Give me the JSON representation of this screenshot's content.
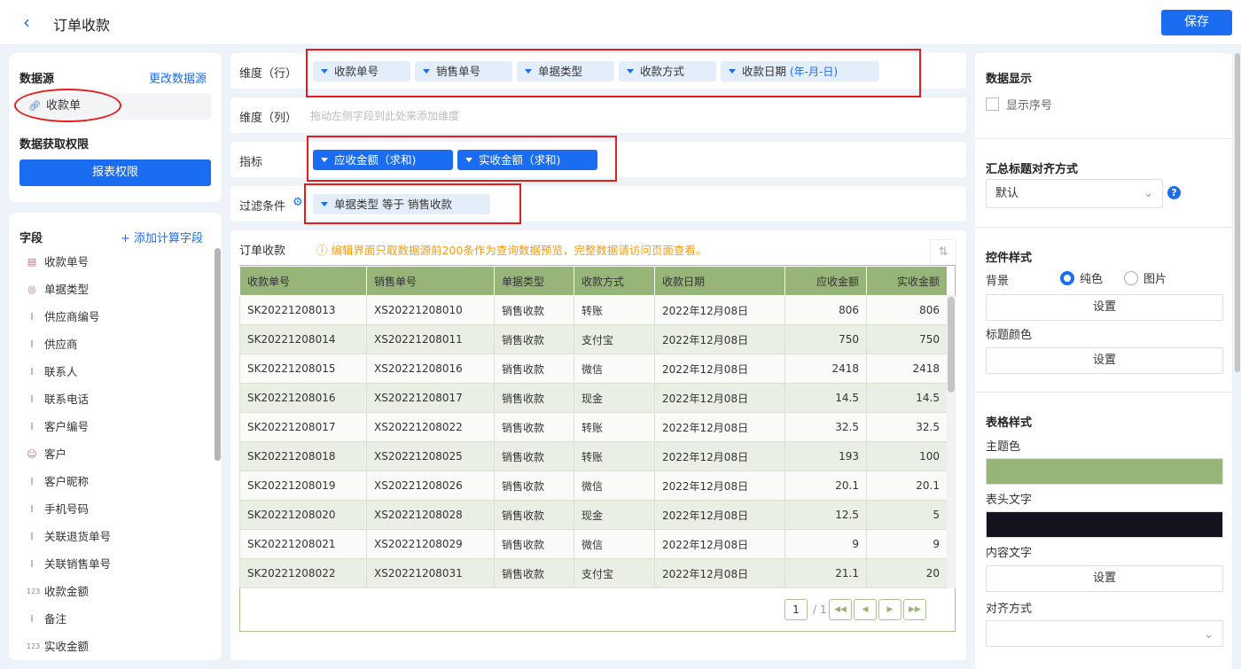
{
  "header": {
    "title": "订单收款",
    "save_label": "保存"
  },
  "datasource": {
    "label": "数据源",
    "change_link": "更改数据源",
    "source": "收款单",
    "permission_label": "数据获取权限",
    "permission_button": "报表权限"
  },
  "fields": {
    "label": "字段",
    "add_link": "添加计算字段",
    "items": [
      {
        "label": "收款单号",
        "icon": "serial-icon"
      },
      {
        "label": "单据类型",
        "icon": "radio-icon"
      },
      {
        "label": "供应商编号",
        "icon": "text-icon"
      },
      {
        "label": "供应商",
        "icon": "text-icon"
      },
      {
        "label": "联系人",
        "icon": "text-icon"
      },
      {
        "label": "联系电话",
        "icon": "text-icon"
      },
      {
        "label": "客户编号",
        "icon": "text-icon"
      },
      {
        "label": "客户",
        "icon": "user-icon"
      },
      {
        "label": "客户昵称",
        "icon": "text-icon"
      },
      {
        "label": "手机号码",
        "icon": "text-icon"
      },
      {
        "label": "关联退货单号",
        "icon": "text-icon"
      },
      {
        "label": "关联销售单号",
        "icon": "text-icon"
      },
      {
        "label": "收款金额",
        "icon": "number-icon"
      },
      {
        "label": "备注",
        "icon": "text-icon"
      },
      {
        "label": "实收金额",
        "icon": "number-icon"
      }
    ]
  },
  "config": {
    "rows_label": "维度（行）",
    "rows": [
      "收款单号",
      "销售单号",
      "单据类型",
      "收款方式",
      "收款日期"
    ],
    "rows_date_suffix": "(年-月-日)",
    "cols_label": "维度（列）",
    "cols_placeholder": "拖动左侧字段到此处来添加维度",
    "metrics_label": "指标",
    "metrics": [
      "应收金额（求和)",
      "实收金额（求和)"
    ],
    "filter_label": "过滤条件",
    "filter": "单据类型 等于 销售收款"
  },
  "preview": {
    "title": "订单收款",
    "notice": "编辑界面只取数据源前200条作为查询数据预览，完整数据请访问页面查看。",
    "columns": [
      "收款单号",
      "销售单号",
      "单据类型",
      "收款方式",
      "收款日期",
      "应收金额",
      "实收金额"
    ],
    "rows": [
      [
        "SK20221208013",
        "XS20221208010",
        "销售收款",
        "转账",
        "2022年12月08日",
        "806",
        "806"
      ],
      [
        "SK20221208014",
        "XS20221208011",
        "销售收款",
        "支付宝",
        "2022年12月08日",
        "750",
        "750"
      ],
      [
        "SK20221208015",
        "XS20221208016",
        "销售收款",
        "微信",
        "2022年12月08日",
        "2418",
        "2418"
      ],
      [
        "SK20221208016",
        "XS20221208017",
        "销售收款",
        "现金",
        "2022年12月08日",
        "14.5",
        "14.5"
      ],
      [
        "SK20221208017",
        "XS20221208022",
        "销售收款",
        "转账",
        "2022年12月08日",
        "32.5",
        "32.5"
      ],
      [
        "SK20221208018",
        "XS20221208025",
        "销售收款",
        "转账",
        "2022年12月08日",
        "193",
        "100"
      ],
      [
        "SK20221208019",
        "XS20221208026",
        "销售收款",
        "微信",
        "2022年12月08日",
        "20.1",
        "20.1"
      ],
      [
        "SK20221208020",
        "XS20221208028",
        "销售收款",
        "现金",
        "2022年12月08日",
        "12.5",
        "5"
      ],
      [
        "SK20221208021",
        "XS20221208029",
        "销售收款",
        "微信",
        "2022年12月08日",
        "9",
        "9"
      ],
      [
        "SK20221208022",
        "XS20221208031",
        "销售收款",
        "支付宝",
        "2022年12月08日",
        "21.1",
        "20"
      ]
    ],
    "page": "1",
    "total_pages": "/ 1"
  },
  "right": {
    "display_label": "数据显示",
    "show_index": "显示序号",
    "show_index_checked": false,
    "align_title_label": "汇总标题对齐方式",
    "align_title_value": "默认",
    "control_style": "控件样式",
    "bg_label": "背景",
    "bg_options": [
      "纯色",
      "图片"
    ],
    "bg_selected": "纯色",
    "set": "设置",
    "title_color": "标题颜色",
    "table_style": "表格样式",
    "theme_color_label": "主题色",
    "theme_color": "#97b578",
    "header_text_label": "表头文字",
    "header_text_color": "#13131f",
    "content_text_label": "内容文字",
    "align_label": "对齐方式"
  }
}
